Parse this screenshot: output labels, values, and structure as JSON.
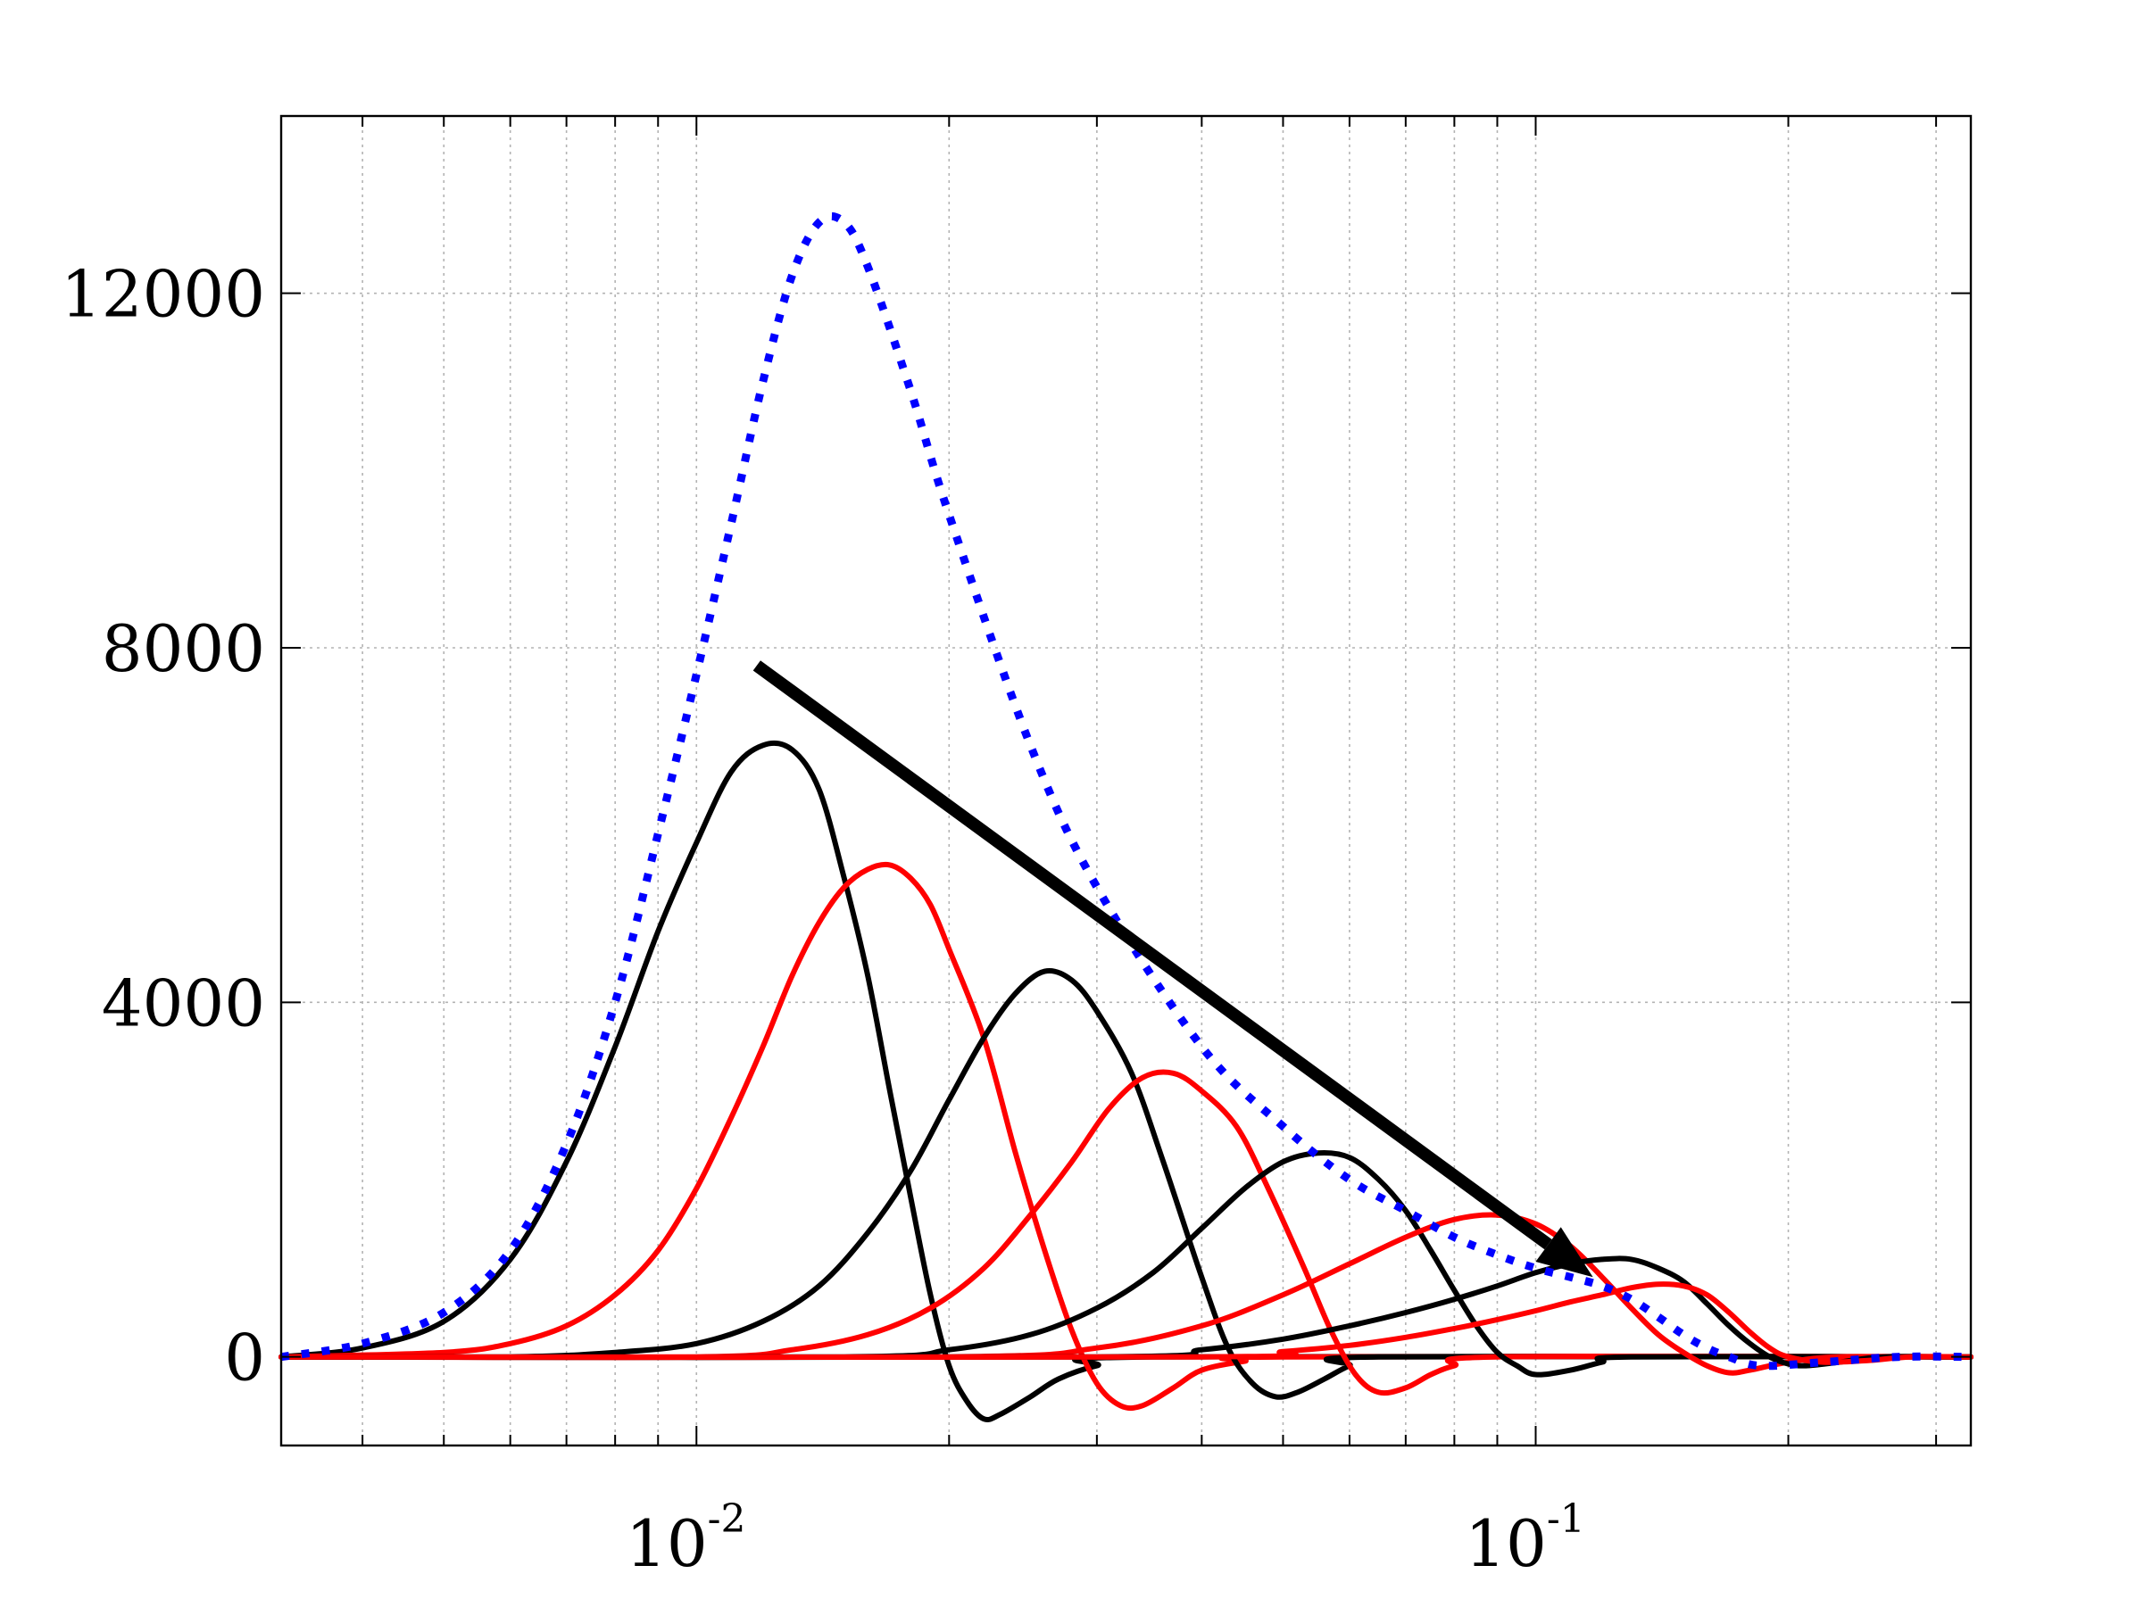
{
  "chart_data": {
    "type": "line",
    "title": "",
    "xlabel": "",
    "ylabel": "",
    "x_scale": "log",
    "xlim": [
      0.0032,
      0.33
    ],
    "ylim": [
      -1000,
      14000
    ],
    "grid": true,
    "x_major_ticks": [
      {
        "value": 0.01,
        "base": "10",
        "exp": "-2"
      },
      {
        "value": 0.1,
        "base": "10",
        "exp": "-1"
      }
    ],
    "y_ticks": [
      {
        "value": 0,
        "label": "0"
      },
      {
        "value": 4000,
        "label": "4000"
      },
      {
        "value": 8000,
        "label": "8000"
      },
      {
        "value": 12000,
        "label": "12000"
      }
    ],
    "envelope": {
      "color": "#0000ff",
      "style": "dotted",
      "points": [
        [
          0.0032,
          0
        ],
        [
          0.004,
          150
        ],
        [
          0.005,
          500
        ],
        [
          0.006,
          1200
        ],
        [
          0.007,
          2400
        ],
        [
          0.008,
          4000
        ],
        [
          0.009,
          5900
        ],
        [
          0.01,
          7700
        ],
        [
          0.011,
          9400
        ],
        [
          0.012,
          11000
        ],
        [
          0.013,
          12200
        ],
        [
          0.014,
          12800
        ],
        [
          0.015,
          12800
        ],
        [
          0.016,
          12300
        ],
        [
          0.018,
          10900
        ],
        [
          0.02,
          9500
        ],
        [
          0.025,
          6900
        ],
        [
          0.03,
          5300
        ],
        [
          0.04,
          3500
        ],
        [
          0.05,
          2600
        ],
        [
          0.06,
          2000
        ],
        [
          0.07,
          1650
        ],
        [
          0.08,
          1350
        ],
        [
          0.09,
          1150
        ],
        [
          0.1,
          1000
        ],
        [
          0.11,
          900
        ],
        [
          0.12,
          800
        ],
        [
          0.13,
          650
        ],
        [
          0.14,
          450
        ],
        [
          0.15,
          250
        ],
        [
          0.16,
          100
        ],
        [
          0.17,
          0
        ],
        [
          0.185,
          -100
        ],
        [
          0.22,
          -60
        ],
        [
          0.27,
          0
        ],
        [
          0.33,
          0
        ]
      ]
    },
    "series_colors": [
      "#000000",
      "#ff0000"
    ],
    "series": [
      {
        "color": "#000000",
        "points": [
          [
            0.0032,
            0
          ],
          [
            0.004,
            100
          ],
          [
            0.005,
            400
          ],
          [
            0.006,
            1100
          ],
          [
            0.007,
            2200
          ],
          [
            0.008,
            3500
          ],
          [
            0.009,
            4800
          ],
          [
            0.01,
            5800
          ],
          [
            0.011,
            6600
          ],
          [
            0.012,
            6900
          ],
          [
            0.013,
            6850
          ],
          [
            0.014,
            6400
          ],
          [
            0.015,
            5400
          ],
          [
            0.016,
            4300
          ],
          [
            0.017,
            3000
          ],
          [
            0.018,
            1800
          ],
          [
            0.019,
            700
          ],
          [
            0.02,
            -100
          ],
          [
            0.021,
            -500
          ],
          [
            0.022,
            -700
          ],
          [
            0.023,
            -650
          ],
          [
            0.025,
            -450
          ],
          [
            0.027,
            -250
          ],
          [
            0.03,
            -100
          ],
          [
            0.035,
            0
          ],
          [
            0.33,
            0
          ]
        ]
      },
      {
        "color": "#ff0000",
        "points": [
          [
            0.0032,
            0
          ],
          [
            0.005,
            50
          ],
          [
            0.006,
            150
          ],
          [
            0.007,
            350
          ],
          [
            0.008,
            700
          ],
          [
            0.009,
            1200
          ],
          [
            0.01,
            1900
          ],
          [
            0.011,
            2700
          ],
          [
            0.012,
            3500
          ],
          [
            0.013,
            4300
          ],
          [
            0.014,
            4900
          ],
          [
            0.015,
            5300
          ],
          [
            0.016,
            5500
          ],
          [
            0.017,
            5550
          ],
          [
            0.018,
            5400
          ],
          [
            0.019,
            5100
          ],
          [
            0.02,
            4600
          ],
          [
            0.022,
            3600
          ],
          [
            0.024,
            2300
          ],
          [
            0.026,
            1200
          ],
          [
            0.028,
            300
          ],
          [
            0.03,
            -300
          ],
          [
            0.032,
            -550
          ],
          [
            0.034,
            -550
          ],
          [
            0.037,
            -350
          ],
          [
            0.04,
            -150
          ],
          [
            0.045,
            -50
          ],
          [
            0.05,
            0
          ],
          [
            0.33,
            0
          ]
        ]
      },
      {
        "color": "#000000",
        "points": [
          [
            0.0032,
            0
          ],
          [
            0.006,
            0
          ],
          [
            0.008,
            50
          ],
          [
            0.01,
            150
          ],
          [
            0.012,
            400
          ],
          [
            0.014,
            800
          ],
          [
            0.016,
            1400
          ],
          [
            0.018,
            2100
          ],
          [
            0.02,
            2900
          ],
          [
            0.022,
            3600
          ],
          [
            0.024,
            4100
          ],
          [
            0.026,
            4350
          ],
          [
            0.028,
            4250
          ],
          [
            0.03,
            3900
          ],
          [
            0.033,
            3200
          ],
          [
            0.036,
            2200
          ],
          [
            0.04,
            900
          ],
          [
            0.043,
            100
          ],
          [
            0.046,
            -300
          ],
          [
            0.049,
            -450
          ],
          [
            0.052,
            -400
          ],
          [
            0.056,
            -250
          ],
          [
            0.06,
            -100
          ],
          [
            0.065,
            0
          ],
          [
            0.33,
            0
          ]
        ]
      },
      {
        "color": "#ff0000",
        "points": [
          [
            0.0032,
            0
          ],
          [
            0.01,
            0
          ],
          [
            0.013,
            80
          ],
          [
            0.016,
            250
          ],
          [
            0.019,
            550
          ],
          [
            0.022,
            1000
          ],
          [
            0.025,
            1600
          ],
          [
            0.028,
            2200
          ],
          [
            0.031,
            2800
          ],
          [
            0.034,
            3150
          ],
          [
            0.037,
            3200
          ],
          [
            0.04,
            3000
          ],
          [
            0.044,
            2600
          ],
          [
            0.048,
            1900
          ],
          [
            0.053,
            1000
          ],
          [
            0.057,
            300
          ],
          [
            0.061,
            -200
          ],
          [
            0.065,
            -400
          ],
          [
            0.07,
            -350
          ],
          [
            0.075,
            -200
          ],
          [
            0.08,
            -100
          ],
          [
            0.09,
            0
          ],
          [
            0.33,
            0
          ]
        ]
      },
      {
        "color": "#000000",
        "points": [
          [
            0.0032,
            0
          ],
          [
            0.015,
            0
          ],
          [
            0.02,
            80
          ],
          [
            0.025,
            250
          ],
          [
            0.03,
            550
          ],
          [
            0.035,
            950
          ],
          [
            0.04,
            1450
          ],
          [
            0.045,
            1900
          ],
          [
            0.05,
            2200
          ],
          [
            0.055,
            2300
          ],
          [
            0.06,
            2250
          ],
          [
            0.065,
            2000
          ],
          [
            0.07,
            1650
          ],
          [
            0.075,
            1200
          ],
          [
            0.08,
            750
          ],
          [
            0.085,
            350
          ],
          [
            0.09,
            50
          ],
          [
            0.095,
            -100
          ],
          [
            0.1,
            -200
          ],
          [
            0.11,
            -150
          ],
          [
            0.12,
            -60
          ],
          [
            0.13,
            0
          ],
          [
            0.33,
            0
          ]
        ]
      },
      {
        "color": "#ff0000",
        "points": [
          [
            0.0032,
            0
          ],
          [
            0.02,
            0
          ],
          [
            0.03,
            100
          ],
          [
            0.04,
            350
          ],
          [
            0.05,
            700
          ],
          [
            0.06,
            1050
          ],
          [
            0.07,
            1350
          ],
          [
            0.08,
            1550
          ],
          [
            0.09,
            1600
          ],
          [
            0.1,
            1500
          ],
          [
            0.11,
            1250
          ],
          [
            0.12,
            900
          ],
          [
            0.13,
            550
          ],
          [
            0.14,
            250
          ],
          [
            0.15,
            50
          ],
          [
            0.16,
            -100
          ],
          [
            0.17,
            -180
          ],
          [
            0.18,
            -150
          ],
          [
            0.2,
            -60
          ],
          [
            0.23,
            0
          ],
          [
            0.33,
            0
          ]
        ]
      },
      {
        "color": "#000000",
        "points": [
          [
            0.0032,
            0
          ],
          [
            0.03,
            0
          ],
          [
            0.04,
            80
          ],
          [
            0.05,
            200
          ],
          [
            0.06,
            350
          ],
          [
            0.07,
            500
          ],
          [
            0.08,
            650
          ],
          [
            0.09,
            800
          ],
          [
            0.1,
            950
          ],
          [
            0.11,
            1050
          ],
          [
            0.12,
            1100
          ],
          [
            0.13,
            1100
          ],
          [
            0.14,
            1000
          ],
          [
            0.15,
            850
          ],
          [
            0.16,
            600
          ],
          [
            0.17,
            350
          ],
          [
            0.18,
            150
          ],
          [
            0.19,
            0
          ],
          [
            0.2,
            -80
          ],
          [
            0.21,
            -100
          ],
          [
            0.23,
            -60
          ],
          [
            0.26,
            0
          ],
          [
            0.33,
            0
          ]
        ]
      },
      {
        "color": "#ff0000",
        "points": [
          [
            0.0032,
            0
          ],
          [
            0.04,
            0
          ],
          [
            0.05,
            60
          ],
          [
            0.06,
            130
          ],
          [
            0.07,
            220
          ],
          [
            0.08,
            320
          ],
          [
            0.09,
            420
          ],
          [
            0.1,
            520
          ],
          [
            0.11,
            620
          ],
          [
            0.12,
            700
          ],
          [
            0.13,
            780
          ],
          [
            0.14,
            820
          ],
          [
            0.15,
            800
          ],
          [
            0.16,
            700
          ],
          [
            0.17,
            500
          ],
          [
            0.18,
            280
          ],
          [
            0.19,
            100
          ],
          [
            0.2,
            0
          ],
          [
            0.22,
            -60
          ],
          [
            0.25,
            -40
          ],
          [
            0.28,
            0
          ],
          [
            0.33,
            0
          ]
        ]
      }
    ],
    "annotation": {
      "type": "arrow",
      "color": "#000000",
      "from": [
        0.0118,
        7800
      ],
      "to": [
        0.117,
        900
      ]
    }
  }
}
